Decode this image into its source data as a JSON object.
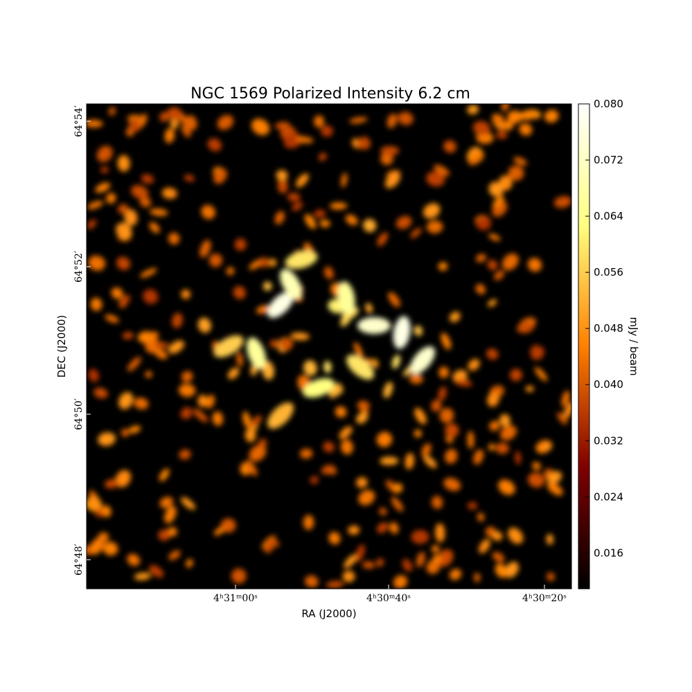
{
  "chart_data": {
    "type": "image",
    "title": "NGC 1569 Polarized Intensity 6.2 cm",
    "x_label": "RA (J2000)",
    "y_label": "DEC (J2000)",
    "x_tick_labels": [
      "4ʰ31ᵐ00ˢ",
      "4ʰ30ᵐ40ˢ",
      "4ʰ30ᵐ20ˢ"
    ],
    "y_tick_labels": [
      "64°54′",
      "64°52′",
      "64°50′",
      "64°48′"
    ],
    "colorbar": {
      "label": "mJy / beam",
      "cmap": "afmhot",
      "lim": [
        0.0109,
        0.08
      ],
      "ticks": [
        0.016,
        0.024,
        0.032,
        {
          "value": 0.04,
          "label": "0.040"
        },
        0.048,
        0.056,
        0.064,
        0.072,
        {
          "value": 0.08,
          "label": "0.080"
        }
      ]
    }
  }
}
